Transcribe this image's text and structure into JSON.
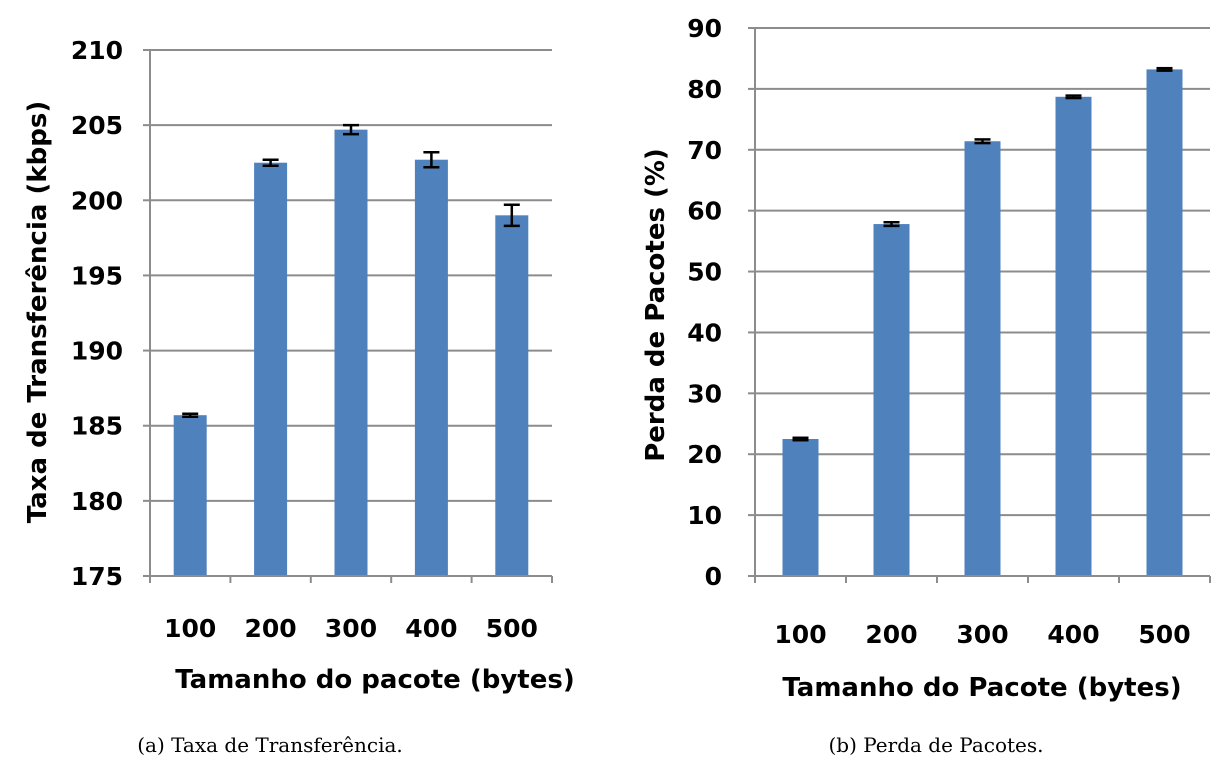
{
  "chart_data": [
    {
      "type": "bar",
      "caption": "(a) Taxa de Transferência.",
      "xlabel": "Tamanho do pacote (bytes)",
      "ylabel": "Taxa de Transferência (kbps)",
      "categories": [
        "100",
        "200",
        "300",
        "400",
        "500"
      ],
      "values": [
        185.7,
        202.5,
        204.7,
        202.7,
        199.0
      ],
      "errors": [
        0.1,
        0.2,
        0.3,
        0.5,
        0.7
      ],
      "ylim": [
        175,
        210
      ],
      "yticks": [
        "175",
        "180",
        "185",
        "190",
        "195",
        "200",
        "205",
        "210"
      ],
      "grid": true,
      "bar_color": "#4f81bd"
    },
    {
      "type": "bar",
      "caption": "(b) Perda de Pacotes.",
      "xlabel": "Tamanho do Pacote (bytes)",
      "ylabel": "Perda de Pacotes (%)",
      "categories": [
        "100",
        "200",
        "300",
        "400",
        "500"
      ],
      "values": [
        22.5,
        57.8,
        71.4,
        78.7,
        83.2
      ],
      "errors": [
        0.2,
        0.3,
        0.3,
        0.2,
        0.2
      ],
      "ylim": [
        0,
        90
      ],
      "yticks": [
        "0",
        "10",
        "20",
        "30",
        "40",
        "50",
        "60",
        "70",
        "80",
        "90"
      ],
      "grid": true,
      "bar_color": "#4f81bd"
    }
  ]
}
